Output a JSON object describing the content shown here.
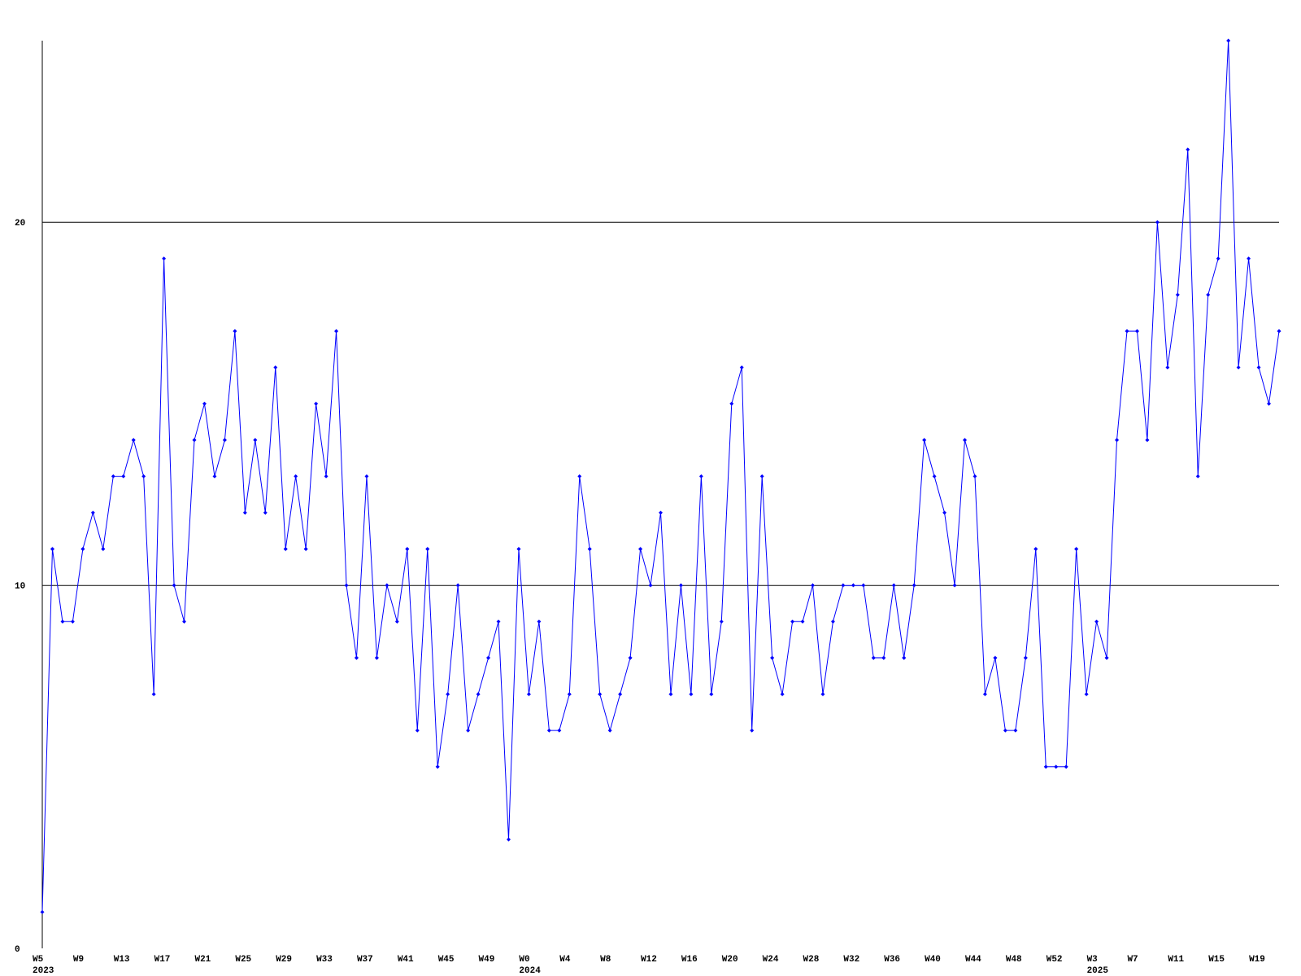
{
  "chart_data": {
    "type": "line",
    "categories": [
      "W5",
      null,
      null,
      null,
      "W9",
      null,
      null,
      null,
      "W13",
      null,
      null,
      null,
      "W17",
      null,
      null,
      null,
      "W21",
      null,
      null,
      null,
      "W25",
      null,
      null,
      null,
      "W29",
      null,
      null,
      null,
      "W33",
      null,
      null,
      null,
      "W37",
      null,
      null,
      null,
      "W41",
      null,
      null,
      null,
      "W45",
      null,
      null,
      null,
      "W49",
      null,
      null,
      null,
      "W0",
      null,
      null,
      null,
      "W4",
      null,
      null,
      null,
      "W8",
      null,
      null,
      null,
      "W12",
      null,
      null,
      null,
      "W16",
      null,
      null,
      null,
      "W20",
      null,
      null,
      null,
      "W24",
      null,
      null,
      null,
      "W28",
      null,
      null,
      null,
      "W32",
      null,
      null,
      null,
      "W36",
      null,
      null,
      null,
      "W40",
      null,
      null,
      null,
      "W44",
      null,
      null,
      null,
      "W48",
      null,
      null,
      null,
      "W52",
      null,
      null,
      null,
      "W3",
      null,
      null,
      null,
      "W7",
      null,
      null,
      null,
      "W11",
      null,
      null,
      null,
      "W15",
      null,
      null,
      null,
      "W19",
      null,
      null
    ],
    "years": [
      "2023",
      null,
      null,
      null,
      null,
      null,
      null,
      null,
      null,
      null,
      null,
      null,
      null,
      null,
      null,
      null,
      null,
      null,
      null,
      null,
      null,
      null,
      null,
      null,
      null,
      null,
      null,
      null,
      null,
      null,
      null,
      null,
      null,
      null,
      null,
      null,
      null,
      null,
      null,
      null,
      null,
      null,
      null,
      null,
      null,
      null,
      null,
      null,
      "2024",
      null,
      null,
      null,
      null,
      null,
      null,
      null,
      null,
      null,
      null,
      null,
      null,
      null,
      null,
      null,
      null,
      null,
      null,
      null,
      null,
      null,
      null,
      null,
      null,
      null,
      null,
      null,
      null,
      null,
      null,
      null,
      null,
      null,
      null,
      null,
      null,
      null,
      null,
      null,
      null,
      null,
      null,
      null,
      null,
      null,
      null,
      null,
      null,
      null,
      null,
      null,
      null,
      null,
      null,
      null,
      "2025",
      null,
      null,
      null,
      null,
      null,
      null,
      null,
      null,
      null,
      null,
      null,
      null,
      null,
      null,
      null,
      null,
      null
    ],
    "series": [
      {
        "color": "#0000ff",
        "values": [
          1,
          11,
          9,
          9,
          11,
          12,
          11,
          13,
          13,
          14,
          13,
          7,
          19,
          10,
          9,
          14,
          15,
          13,
          14,
          17,
          12,
          14,
          12,
          16,
          11,
          13,
          11,
          15,
          13,
          17,
          10,
          8,
          13,
          8,
          10,
          9,
          11,
          6,
          11,
          5,
          7,
          10,
          6,
          7,
          8,
          9,
          3,
          11,
          7,
          9,
          6,
          6,
          7,
          13,
          11,
          7,
          6,
          7,
          8,
          11,
          10,
          12,
          7,
          10,
          7,
          13,
          7,
          9,
          15,
          16,
          6,
          13,
          8,
          7,
          9,
          9,
          10,
          7,
          9,
          10,
          10,
          10,
          8,
          8,
          10,
          8,
          10,
          14,
          13,
          12,
          10,
          14,
          13,
          7,
          8,
          6,
          6,
          8,
          11,
          5,
          5,
          5,
          11,
          7,
          9,
          8,
          14,
          17,
          17,
          14,
          20,
          16,
          18,
          22,
          13,
          18,
          19,
          25,
          16,
          19,
          16,
          15,
          17
        ]
      }
    ],
    "ylim": [
      0,
      25
    ],
    "yticks": [
      0,
      10,
      20
    ],
    "grid": true
  }
}
